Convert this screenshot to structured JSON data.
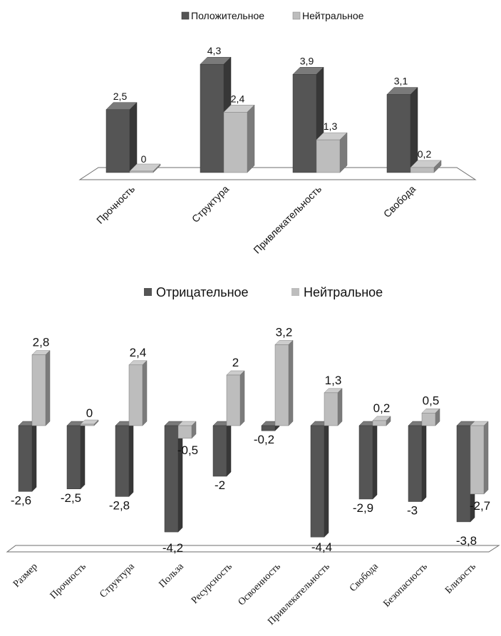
{
  "chart_data": [
    {
      "type": "bar",
      "categories": [
        "Прочность",
        "Структура",
        "Привлекательность",
        "Свобода"
      ],
      "series": [
        {
          "name": "Положительное",
          "color": "#555555",
          "values": [
            2.5,
            4.3,
            3.9,
            3.1
          ],
          "labels": [
            "2,5",
            "4,3",
            "3,9",
            "3,1"
          ]
        },
        {
          "name": "Нейтральное",
          "color": "#bdbdbd",
          "values": [
            0,
            2.4,
            1.3,
            0.2
          ],
          "labels": [
            "0",
            "2,4",
            "1,3",
            "0,2"
          ]
        }
      ],
      "legend": "top",
      "title": "",
      "xlabel": "",
      "ylabel": "",
      "grid": false
    },
    {
      "type": "bar",
      "categories": [
        "Размер",
        "Прочность",
        "Структура",
        "Польза",
        "Ресурсность",
        "Освоенность",
        "Привлекательность",
        "Свобода",
        "Безопасность",
        "Близость"
      ],
      "series": [
        {
          "name": "Отрицательное",
          "color": "#555555",
          "values": [
            -2.6,
            -2.5,
            -2.8,
            -4.2,
            -2,
            -0.2,
            -4.4,
            -2.9,
            -3,
            -3.8
          ],
          "labels": [
            "-2,6",
            "-2,5",
            "-2,8",
            "-4,2",
            "-2",
            "-0,2",
            "-4,4",
            "-2,9",
            "-3",
            "-3,8"
          ]
        },
        {
          "name": "Нейтральное",
          "color": "#bdbdbd",
          "values": [
            2.8,
            0,
            2.4,
            -0.5,
            2,
            3.2,
            1.3,
            0.2,
            0.5,
            -2.7
          ],
          "labels": [
            "2,8",
            "0",
            "2,4",
            "-0,5",
            "2",
            "3,2",
            "1,3",
            "0,2",
            "0,5",
            "-2,7"
          ]
        }
      ],
      "legend": "top",
      "title": "",
      "xlabel": "",
      "ylabel": "",
      "grid": false
    }
  ]
}
